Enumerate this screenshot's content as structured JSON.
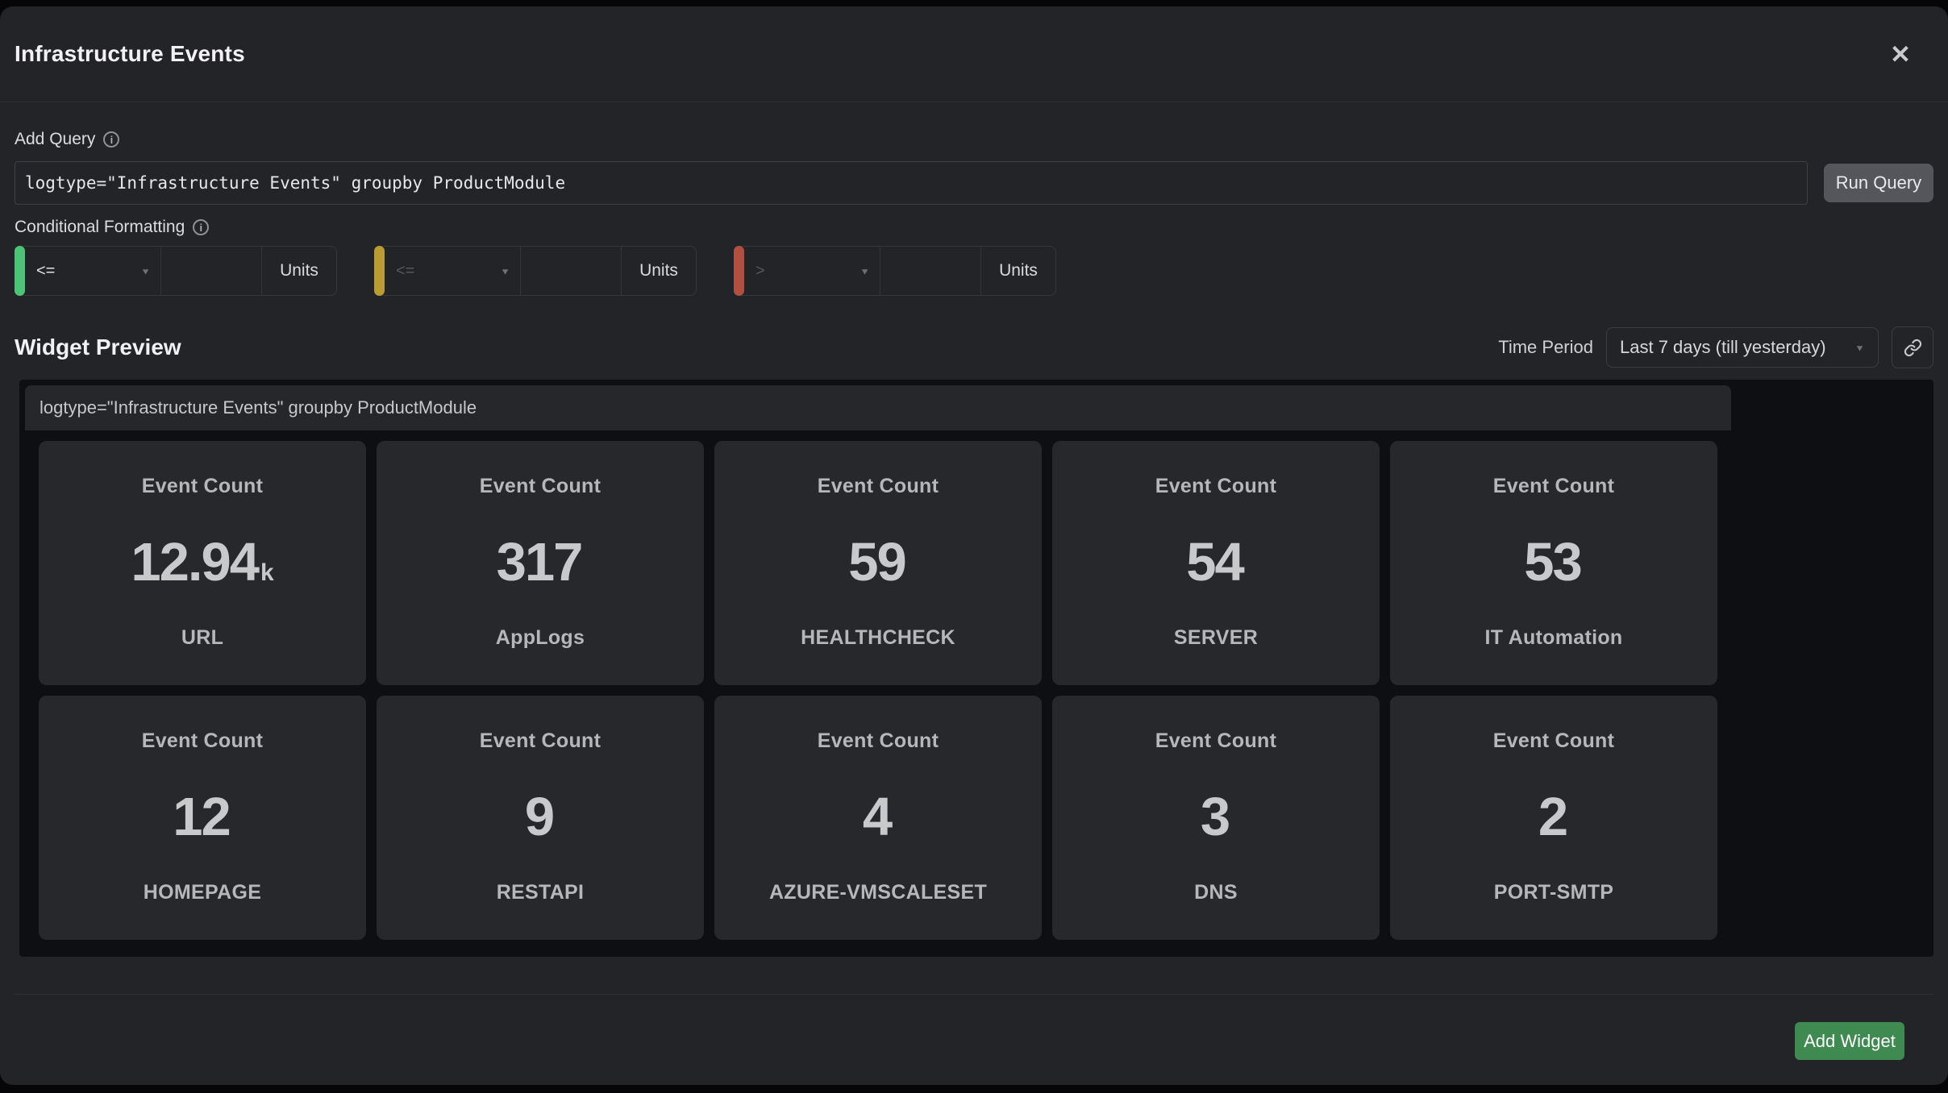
{
  "header": {
    "title": "Infrastructure Events",
    "close_icon": "✕"
  },
  "query": {
    "label": "Add Query",
    "info_icon": "i",
    "value": "logtype=\"Infrastructure Events\" groupby ProductModule",
    "run_button": "Run Query"
  },
  "conditional": {
    "label": "Conditional Formatting",
    "info_icon": "i",
    "dropdown_icon": "▼",
    "rules": [
      {
        "color": "#4cc476",
        "operator": "<=",
        "value": "",
        "units_label": "Units",
        "muted": false
      },
      {
        "color": "#bb9c32",
        "operator": "<=",
        "value": "",
        "units_label": "Units",
        "muted": true
      },
      {
        "color": "#b14f40",
        "operator": ">",
        "value": "",
        "units_label": "Units",
        "muted": true
      }
    ]
  },
  "preview": {
    "title": "Widget Preview",
    "time_period_label": "Time Period",
    "time_period_value": "Last 7 days (till yesterday)",
    "dropdown_icon": "▼",
    "link_icon": "link",
    "query_text": "logtype=\"Infrastructure Events\" groupby ProductModule",
    "cards": [
      {
        "title": "Event Count",
        "value": "12.94",
        "suffix": "k",
        "label": "URL"
      },
      {
        "title": "Event Count",
        "value": "317",
        "suffix": "",
        "label": "AppLogs"
      },
      {
        "title": "Event Count",
        "value": "59",
        "suffix": "",
        "label": "HEALTHCHECK"
      },
      {
        "title": "Event Count",
        "value": "54",
        "suffix": "",
        "label": "SERVER"
      },
      {
        "title": "Event Count",
        "value": "53",
        "suffix": "",
        "label": "IT Automation"
      },
      {
        "title": "Event Count",
        "value": "12",
        "suffix": "",
        "label": "HOMEPAGE"
      },
      {
        "title": "Event Count",
        "value": "9",
        "suffix": "",
        "label": "RESTAPI"
      },
      {
        "title": "Event Count",
        "value": "4",
        "suffix": "",
        "label": "AZURE-VMSCALESET"
      },
      {
        "title": "Event Count",
        "value": "3",
        "suffix": "",
        "label": "DNS"
      },
      {
        "title": "Event Count",
        "value": "2",
        "suffix": "",
        "label": "PORT-SMTP"
      }
    ]
  },
  "footer": {
    "add_widget": "Add Widget"
  },
  "colors": {
    "accent_green": "#3e8a50",
    "bar_green": "#4cc476",
    "bar_yellow": "#bb9c32",
    "bar_red": "#b14f40",
    "modal_bg": "#232428",
    "preview_bg": "#0e0f12",
    "card_bg": "#26282c"
  }
}
